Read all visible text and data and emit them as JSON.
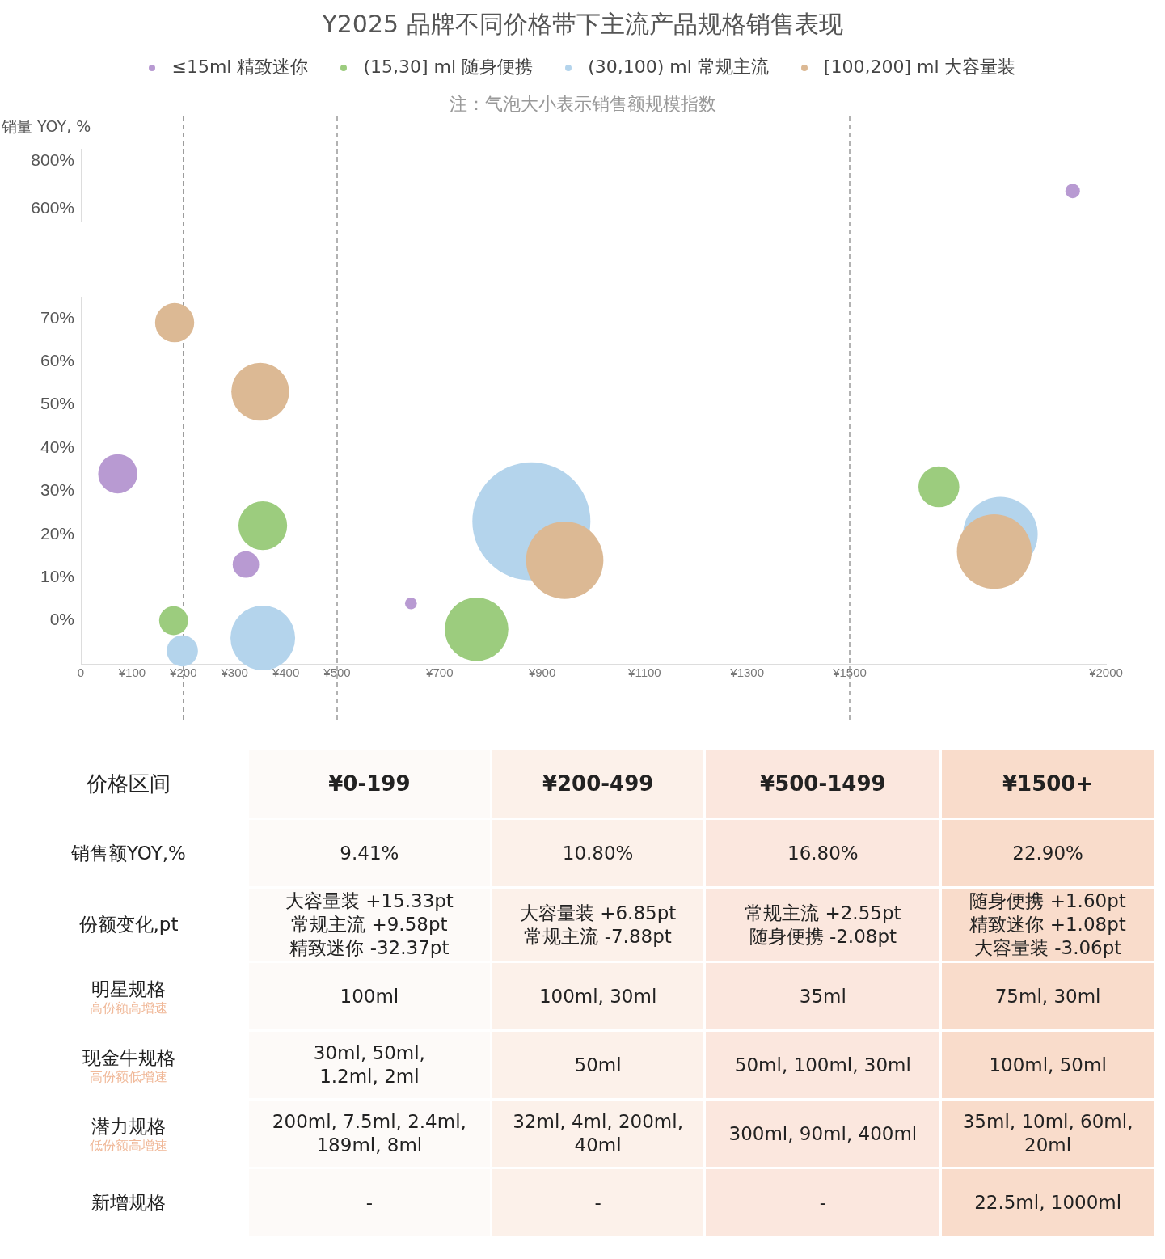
{
  "chart_data": [
    {
      "type": "bubble",
      "title": "Y2025 品牌不同价格带下主流产品规格销售表现",
      "subtitle": "注：气泡大小表示销售额规模指数",
      "ylabel": "销量 YOY, %",
      "tick_labels": "y",
      "grid": false,
      "xlim": [
        0,
        2000
      ],
      "ylim": [
        550,
        850
      ],
      "yticks": [
        {
          "value": 600,
          "label": "600%"
        },
        {
          "value": 800,
          "label": "800%"
        }
      ],
      "ref_lines": [
        {
          "axis": "x",
          "value": 200,
          "color": "#999999",
          "line_style": "dashed"
        },
        {
          "axis": "x",
          "value": 500,
          "color": "#999999",
          "line_style": "dashed"
        },
        {
          "axis": "x",
          "value": 1500,
          "color": "#999999",
          "line_style": "dashed"
        }
      ],
      "series": [
        {
          "color": "#b89ad2",
          "x": [
            1935
          ],
          "values": [
            675
          ]
        }
      ]
    },
    {
      "type": "bubble",
      "legend": "top",
      "grid": false,
      "xlim": [
        0,
        2000
      ],
      "xticks": [
        {
          "value": 0,
          "label": "0"
        },
        {
          "value": 100,
          "label": "¥100"
        },
        {
          "value": 200,
          "label": "¥200"
        },
        {
          "value": 300,
          "label": "¥300"
        },
        {
          "value": 400,
          "label": "¥400"
        },
        {
          "value": 500,
          "label": "¥500"
        },
        {
          "value": 700,
          "label": "¥700"
        },
        {
          "value": 900,
          "label": "¥900"
        },
        {
          "value": 1100,
          "label": "¥1100"
        },
        {
          "value": 1300,
          "label": "¥1300"
        },
        {
          "value": 1500,
          "label": "¥1500"
        },
        {
          "value": 2000,
          "label": "¥2000"
        }
      ],
      "ylim": [
        -10,
        75
      ],
      "yticks": [
        {
          "value": 0,
          "label": "0%"
        },
        {
          "value": 10,
          "label": "10%"
        },
        {
          "value": 20,
          "label": "20%"
        },
        {
          "value": 30,
          "label": "30%"
        },
        {
          "value": 40,
          "label": "40%"
        },
        {
          "value": 50,
          "label": "50%"
        },
        {
          "value": 60,
          "label": "60%"
        },
        {
          "value": 70,
          "label": "70%"
        }
      ],
      "ref_lines": [
        {
          "axis": "x",
          "value": 200,
          "color": "#999999",
          "line_style": "dashed"
        },
        {
          "axis": "x",
          "value": 500,
          "color": "#999999",
          "line_style": "dashed"
        },
        {
          "axis": "x",
          "value": 1500,
          "color": "#999999",
          "line_style": "dashed"
        }
      ],
      "series": [
        {
          "name": "≤15ml 精致迷你",
          "color": "#b89ad2",
          "x": [
            72,
            322,
            644
          ],
          "values": [
            34,
            13,
            4
          ],
          "sizes": [
            0.11,
            0.05,
            0.01
          ]
        },
        {
          "name": "(15,30] ml 随身便携",
          "color": "#9ccc7e",
          "x": [
            181,
            355,
            772,
            1674
          ],
          "values": [
            0,
            22,
            -2,
            31
          ],
          "sizes": [
            0.06,
            0.17,
            0.29,
            0.12
          ]
        },
        {
          "name": "(30,100) ml 常规主流",
          "color": "#b4d4ec",
          "x": [
            198,
            355,
            879,
            1794
          ],
          "values": [
            -7,
            -4,
            23,
            20
          ],
          "sizes": [
            0.07,
            0.3,
            1,
            0.4
          ]
        },
        {
          "name": "[100,200] ml 大容量装",
          "color": "#dcb994",
          "x": [
            183,
            350,
            944,
            1782
          ],
          "values": [
            69,
            53,
            14,
            16
          ],
          "sizes": [
            0.11,
            0.24,
            0.43,
            0.4
          ]
        }
      ]
    },
    {
      "type": "other",
      "ylabel": "价格区间",
      "categories": [
        "¥0-199",
        "¥200-499",
        "¥500-1499",
        "¥1500+"
      ],
      "colors": [
        "#fdfaf8",
        "#fcf1ea",
        "#fbe7de",
        "#f9dccb"
      ],
      "y_categories": [
        "销售额YOY,%",
        "份额变化,pt",
        "明星规格",
        "现金牛规格",
        "潜力规格",
        "新增规格"
      ],
      "y2_categories": [
        null,
        null,
        "高份额高增速",
        "高份额低增速",
        "低份额高增速",
        null
      ],
      "cell_labels": [
        [
          "9.41%",
          "10.80%",
          "16.80%",
          "22.90%"
        ],
        [
          "大容量装 +15.33pt\n常规主流 +9.58pt\n精致迷你 -32.37pt",
          "大容量装 +6.85pt\n常规主流 -7.88pt",
          "常规主流 +2.55pt\n随身便携 -2.08pt",
          "随身便携 +1.60pt\n精致迷你 +1.08pt\n大容量装 -3.06pt"
        ],
        [
          "100ml",
          "100ml, 30ml",
          "35ml",
          "75ml, 30ml"
        ],
        [
          "30ml, 50ml,\n1.2ml, 2ml",
          "50ml",
          "50ml, 100ml, 30ml",
          "100ml, 50ml"
        ],
        [
          "200ml, 7.5ml, 2.4ml,\n189ml, 8ml",
          "32ml, 4ml, 200ml,\n40ml",
          "300ml, 90ml, 400ml",
          "35ml, 10ml, 60ml,\n20ml"
        ],
        [
          "-",
          "-",
          "-",
          "22.5ml, 1000ml"
        ]
      ]
    }
  ]
}
